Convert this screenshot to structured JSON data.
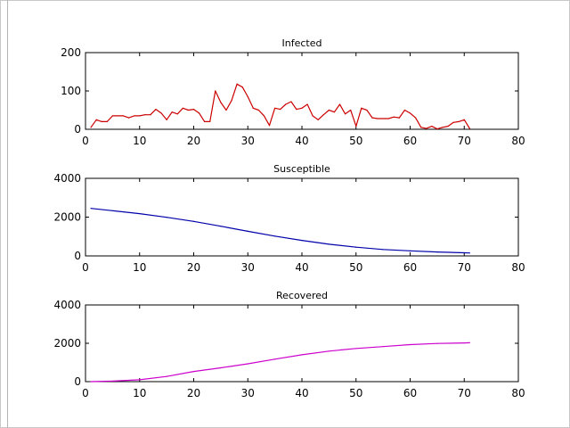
{
  "chart_data": [
    {
      "type": "line",
      "title": "Infected",
      "xlabel": "",
      "ylabel": "",
      "xlim": [
        0,
        80
      ],
      "ylim": [
        0,
        200
      ],
      "xticks": [
        0,
        10,
        20,
        30,
        40,
        50,
        60,
        70,
        80
      ],
      "yticks": [
        0,
        100,
        200
      ],
      "color": "#cc0000",
      "grid": false,
      "x": [
        1,
        2,
        3,
        4,
        5,
        6,
        7,
        8,
        9,
        10,
        11,
        12,
        13,
        14,
        15,
        16,
        17,
        18,
        19,
        20,
        21,
        22,
        23,
        24,
        25,
        26,
        27,
        28,
        29,
        30,
        31,
        32,
        33,
        34,
        35,
        36,
        37,
        38,
        39,
        40,
        41,
        42,
        43,
        44,
        45,
        46,
        47,
        48,
        49,
        50,
        51,
        52,
        53,
        54,
        55,
        56,
        57,
        58,
        59,
        60,
        61,
        62,
        63,
        64,
        65,
        66,
        67,
        68,
        69,
        70,
        71
      ],
      "y": [
        5,
        25,
        20,
        20,
        35,
        35,
        35,
        30,
        35,
        35,
        38,
        38,
        52,
        42,
        25,
        45,
        40,
        55,
        50,
        52,
        42,
        20,
        20,
        100,
        70,
        50,
        75,
        118,
        110,
        85,
        55,
        50,
        35,
        10,
        55,
        52,
        65,
        72,
        52,
        55,
        65,
        35,
        25,
        38,
        50,
        45,
        65,
        40,
        50,
        8,
        55,
        50,
        30,
        28,
        28,
        28,
        32,
        30,
        50,
        42,
        30,
        5,
        2,
        8,
        1,
        5,
        8,
        18,
        20,
        25,
        2
      ]
    },
    {
      "type": "line",
      "title": "Susceptible",
      "xlabel": "",
      "ylabel": "",
      "xlim": [
        0,
        80
      ],
      "ylim": [
        0,
        4000
      ],
      "xticks": [
        0,
        10,
        20,
        30,
        40,
        50,
        60,
        70,
        80
      ],
      "yticks": [
        0,
        2000,
        4000
      ],
      "color": "#0000aa",
      "grid": false,
      "x": [
        1,
        5,
        10,
        15,
        20,
        25,
        30,
        35,
        40,
        45,
        50,
        55,
        60,
        65,
        70,
        71
      ],
      "y": [
        2450,
        2330,
        2180,
        1990,
        1780,
        1530,
        1270,
        1020,
        800,
        600,
        450,
        330,
        260,
        200,
        160,
        150
      ]
    },
    {
      "type": "line",
      "title": "Recovered",
      "xlabel": "",
      "ylabel": "",
      "xlim": [
        0,
        80
      ],
      "ylim": [
        0,
        4000
      ],
      "xticks": [
        0,
        10,
        20,
        30,
        40,
        50,
        60,
        70,
        80
      ],
      "yticks": [
        0,
        2000,
        4000
      ],
      "color": "#cc00cc",
      "grid": false,
      "x": [
        1,
        5,
        10,
        15,
        20,
        25,
        30,
        35,
        40,
        45,
        50,
        55,
        60,
        65,
        70,
        71
      ],
      "y": [
        0,
        30,
        100,
        270,
        530,
        720,
        930,
        1170,
        1400,
        1590,
        1730,
        1830,
        1930,
        1990,
        2020,
        2030
      ]
    }
  ]
}
